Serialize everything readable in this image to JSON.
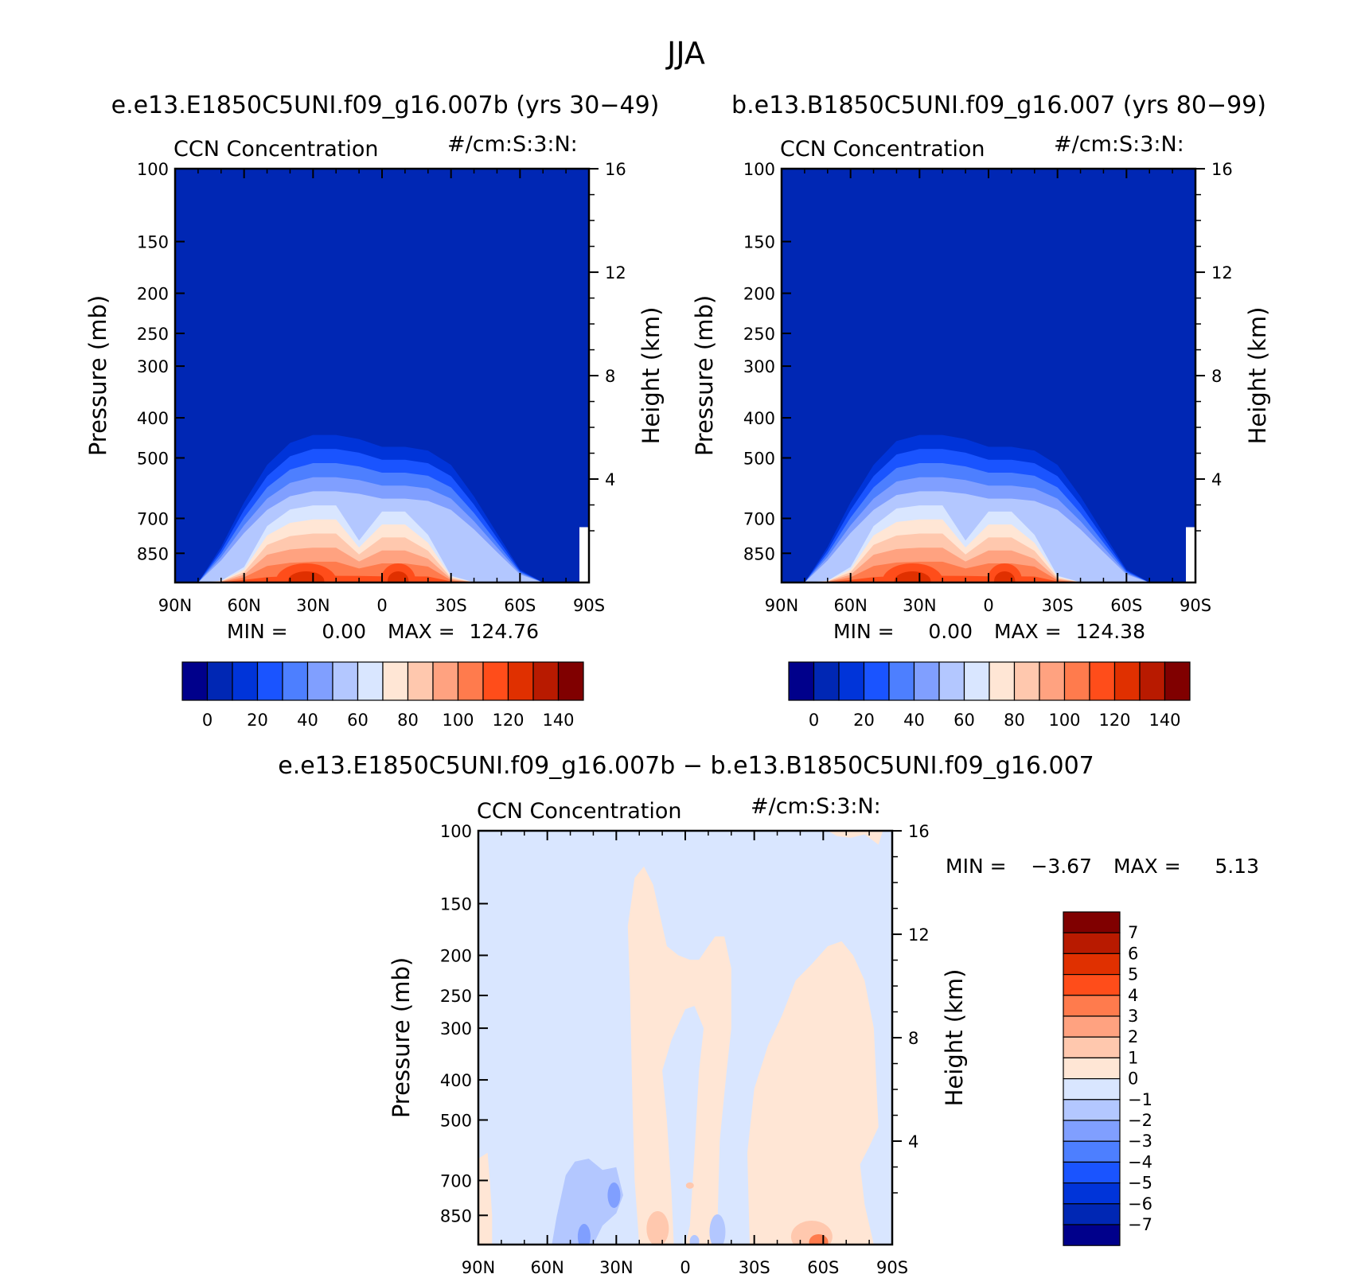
{
  "figure": {
    "title": "JJA",
    "left_subtitle": "e.e13.E1850C5UNI.f09_g16.007b (yrs 30−49)",
    "right_subtitle": "b.e13.B1850C5UNI.f09_g16.007 (yrs 80−99)",
    "diff_subtitle": "e.e13.E1850C5UNI.f09_g16.007b − b.e13.B1850C5UNI.f09_g16.007"
  },
  "chart_data": [
    {
      "type": "heatmap",
      "panel": "left",
      "variable_label": "CCN Concentration",
      "units_label": "#/cm:S:3:N:",
      "xlabel": "",
      "ylabel": "Pressure (mb)",
      "ylabel_right": "Height (km)",
      "x_ticks": [
        "90N",
        "60N",
        "30N",
        "0",
        "30S",
        "60S",
        "90S"
      ],
      "y_ticks": [
        100,
        150,
        200,
        250,
        300,
        400,
        500,
        700,
        850
      ],
      "y_right_ticks": [
        4,
        8,
        12,
        16
      ],
      "ylim": [
        100,
        1000
      ],
      "y_scale": "log",
      "min_label": "MIN =",
      "min_value": "0.00",
      "max_label": "MAX =",
      "max_value": "124.76",
      "colorbar_ticks": [
        "0",
        "20",
        "40",
        "60",
        "80",
        "100",
        "120",
        "140"
      ],
      "colorbar_levels": [
        0,
        10,
        20,
        30,
        40,
        50,
        60,
        70,
        80,
        90,
        100,
        110,
        120,
        130,
        140
      ],
      "top_boundary_pressure_mb": {
        "lat": [
          80,
          70,
          60,
          50,
          40,
          30,
          20,
          10,
          0,
          -10,
          -20,
          -30,
          -40,
          -50,
          -60,
          -70
        ],
        "p": [
          1000,
          820,
          640,
          520,
          460,
          440,
          440,
          450,
          470,
          470,
          480,
          520,
          620,
          760,
          930,
          1000
        ]
      },
      "maxima": [
        {
          "lat": 33,
          "peak": 124.76
        },
        {
          "lat": -7,
          "peak": 118
        }
      ]
    },
    {
      "type": "heatmap",
      "panel": "right",
      "variable_label": "CCN Concentration",
      "units_label": "#/cm:S:3:N:",
      "xlabel": "",
      "ylabel": "Pressure (mb)",
      "ylabel_right": "Height (km)",
      "x_ticks": [
        "90N",
        "60N",
        "30N",
        "0",
        "30S",
        "60S",
        "90S"
      ],
      "y_ticks": [
        100,
        150,
        200,
        250,
        300,
        400,
        500,
        700,
        850
      ],
      "y_right_ticks": [
        4,
        8,
        12,
        16
      ],
      "ylim": [
        100,
        1000
      ],
      "y_scale": "log",
      "min_label": "MIN =",
      "min_value": "0.00",
      "max_label": "MAX =",
      "max_value": "124.38",
      "colorbar_ticks": [
        "0",
        "20",
        "40",
        "60",
        "80",
        "100",
        "120",
        "140"
      ],
      "colorbar_levels": [
        0,
        10,
        20,
        30,
        40,
        50,
        60,
        70,
        80,
        90,
        100,
        110,
        120,
        130,
        140
      ],
      "top_boundary_pressure_mb": {
        "lat": [
          80,
          70,
          60,
          50,
          40,
          30,
          20,
          10,
          0,
          -10,
          -20,
          -30,
          -40,
          -50,
          -60,
          -70
        ],
        "p": [
          1000,
          820,
          640,
          520,
          455,
          440,
          440,
          450,
          470,
          470,
          480,
          520,
          620,
          760,
          930,
          1000
        ]
      },
      "maxima": [
        {
          "lat": 33,
          "peak": 124.38
        },
        {
          "lat": -7,
          "peak": 118
        }
      ]
    },
    {
      "type": "heatmap",
      "panel": "difference",
      "variable_label": "CCN Concentration",
      "units_label": "#/cm:S:3:N:",
      "xlabel": "",
      "ylabel": "Pressure (mb)",
      "ylabel_right": "Height (km)",
      "x_ticks": [
        "90N",
        "60N",
        "30N",
        "0",
        "30S",
        "60S",
        "90S"
      ],
      "y_ticks": [
        100,
        150,
        200,
        250,
        300,
        400,
        500,
        700,
        850
      ],
      "y_right_ticks": [
        4,
        8,
        12,
        16
      ],
      "ylim": [
        100,
        1000
      ],
      "y_scale": "log",
      "min_label": "MIN =",
      "min_value": "−3.67",
      "max_label": "MAX =",
      "max_value": "5.13",
      "colorbar_ticks": [
        "7",
        "6",
        "5",
        "4",
        "3",
        "2",
        "1",
        "0",
        "−1",
        "−2",
        "−3",
        "−4",
        "−5",
        "−6",
        "−7"
      ],
      "colorbar_levels": [
        -7,
        -6,
        -5,
        -4,
        -3,
        -2,
        -1,
        0,
        1,
        2,
        3,
        4,
        5,
        6,
        7
      ],
      "positive_regions_lat": [
        [
          20,
          -8
        ],
        [
          -22,
          -70
        ]
      ],
      "extremes": [
        {
          "lat": -58,
          "p": 950,
          "value": 5.13
        },
        {
          "lat": 38,
          "p": 980,
          "value": -3.67
        }
      ]
    }
  ],
  "colors": {
    "scale": [
      "#00008b",
      "#0027b4",
      "#0034d9",
      "#1a54ff",
      "#4d7fff",
      "#809fff",
      "#b3c7ff",
      "#d9e6ff",
      "#ffe6d5",
      "#ffc8ae",
      "#ffa280",
      "#ff7b4d",
      "#ff4d1a",
      "#e03000",
      "#b81a00",
      "#800000"
    ]
  }
}
